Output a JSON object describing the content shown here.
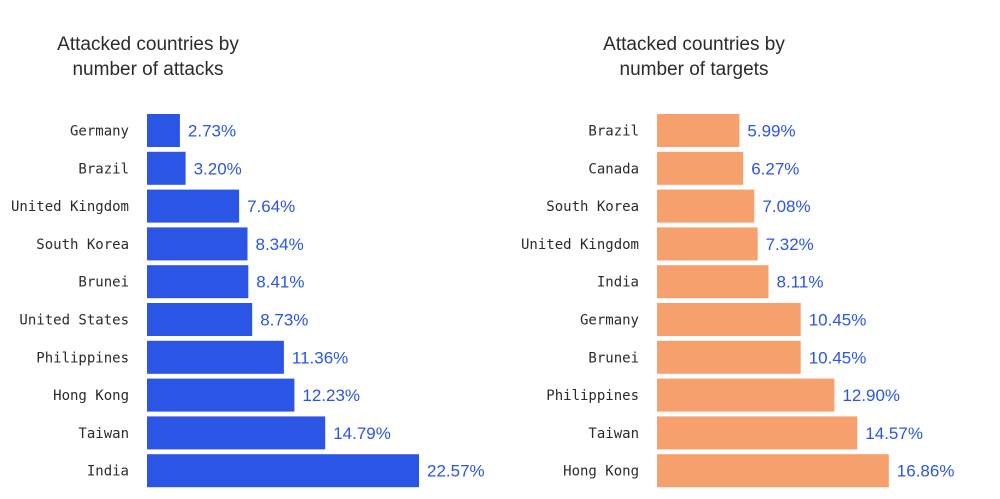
{
  "chart_data": [
    {
      "type": "bar",
      "orientation": "horizontal",
      "title_lines": [
        "Attacked countries by",
        "number of attacks"
      ],
      "categories": [
        "Germany",
        "Brazil",
        "United Kingdom",
        "South Korea",
        "Brunei",
        "United States",
        "Philippines",
        "Hong Kong",
        "Taiwan",
        "India"
      ],
      "values": [
        2.73,
        3.2,
        7.64,
        8.34,
        8.41,
        8.73,
        11.36,
        12.23,
        14.79,
        22.57
      ],
      "value_labels": [
        "2.73%",
        "3.20%",
        "7.64%",
        "8.34%",
        "8.41%",
        "8.73%",
        "11.36%",
        "12.23%",
        "14.79%",
        "22.57%"
      ],
      "bar_color": "#2a55e5",
      "label_color": "#2a55e5",
      "grid": false
    },
    {
      "type": "bar",
      "orientation": "horizontal",
      "title_lines": [
        "Attacked countries by",
        "number of targets"
      ],
      "categories": [
        "Brazil",
        "Canada",
        "South Korea",
        "United Kingdom",
        "India",
        "Germany",
        "Brunei",
        "Philippines",
        "Taiwan",
        "Hong Kong"
      ],
      "values": [
        5.99,
        6.27,
        7.08,
        7.32,
        8.11,
        10.45,
        10.45,
        12.9,
        14.57,
        16.86
      ],
      "value_labels": [
        "5.99%",
        "6.27%",
        "7.08%",
        "7.32%",
        "8.11%",
        "10.45%",
        "10.45%",
        "12.90%",
        "14.57%",
        "16.86%"
      ],
      "bar_color": "#f6a06d",
      "label_color": "#2a55e5",
      "grid": false
    }
  ]
}
